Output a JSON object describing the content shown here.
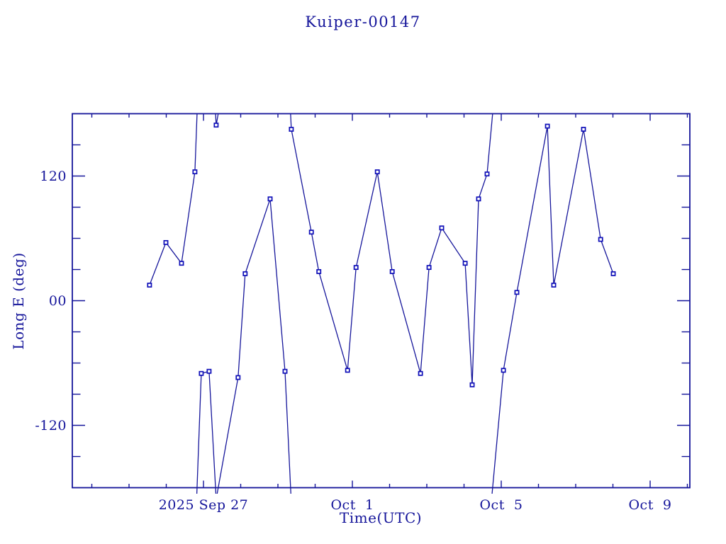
{
  "colors": {
    "background": "#ffffff",
    "frame": "#14149a",
    "line": "#16169b",
    "marker": "#0e0eb8",
    "text": "#14149a"
  },
  "chart_data": {
    "type": "line",
    "title": "Kuiper-00147",
    "xlabel": "Time(UTC)",
    "ylabel": "Long E (deg)",
    "legend": "none",
    "grid": false,
    "x_axis": {
      "epoch": "2025 Sep 27 00:00 UTC",
      "unit": "days since epoch",
      "range_days": [
        -3.524,
        13.067
      ],
      "major_ticks": [
        {
          "day": 0,
          "label": "2025 Sep 27"
        },
        {
          "day": 4,
          "label": "Oct  1"
        },
        {
          "day": 8,
          "label": "Oct  5"
        },
        {
          "day": 12,
          "label": "Oct  9"
        }
      ],
      "minor_tick_days": [
        -3,
        -2,
        -1,
        1,
        2,
        3,
        5,
        6,
        7,
        9,
        10,
        11,
        13
      ]
    },
    "y_axis": {
      "range": [
        -180,
        180
      ],
      "wrap_degrees": true,
      "major_ticks": [
        {
          "value": 120,
          "label": "120"
        },
        {
          "value": 0,
          "label": "00"
        },
        {
          "value": -120,
          "label": "-120"
        }
      ],
      "minor_tick_values": [
        150,
        90,
        60,
        30,
        -30,
        -60,
        -90,
        -150
      ]
    },
    "series": [
      {
        "name": "Long E",
        "marker": "open-square",
        "points": [
          {
            "t": -1.45,
            "lon": 15
          },
          {
            "t": -1.01,
            "lon": 56
          },
          {
            "t": -0.59,
            "lon": 36
          },
          {
            "t": -0.23,
            "lon": 124
          },
          {
            "t": -0.06,
            "lon": -70
          },
          {
            "t": 0.15,
            "lon": -68
          },
          {
            "t": 0.34,
            "lon": 169
          },
          {
            "t": 0.93,
            "lon": -74
          },
          {
            "t": 1.12,
            "lon": 26
          },
          {
            "t": 1.79,
            "lon": 98
          },
          {
            "t": 2.19,
            "lon": -68
          },
          {
            "t": 2.36,
            "lon": 165
          },
          {
            "t": 2.9,
            "lon": 66
          },
          {
            "t": 3.1,
            "lon": 28
          },
          {
            "t": 3.87,
            "lon": -67
          },
          {
            "t": 4.1,
            "lon": 32
          },
          {
            "t": 4.67,
            "lon": 124
          },
          {
            "t": 5.07,
            "lon": 28
          },
          {
            "t": 5.83,
            "lon": -70
          },
          {
            "t": 6.06,
            "lon": 32
          },
          {
            "t": 6.4,
            "lon": 70
          },
          {
            "t": 7.03,
            "lon": 36
          },
          {
            "t": 7.22,
            "lon": -81
          },
          {
            "t": 7.39,
            "lon": 98
          },
          {
            "t": 7.62,
            "lon": 122
          },
          {
            "t": 8.06,
            "lon": -67
          },
          {
            "t": 8.42,
            "lon": 8
          },
          {
            "t": 9.24,
            "lon": 168
          },
          {
            "t": 9.41,
            "lon": 15
          },
          {
            "t": 10.21,
            "lon": 165
          },
          {
            "t": 10.67,
            "lon": 59
          },
          {
            "t": 11.01,
            "lon": 26
          }
        ]
      }
    ]
  }
}
